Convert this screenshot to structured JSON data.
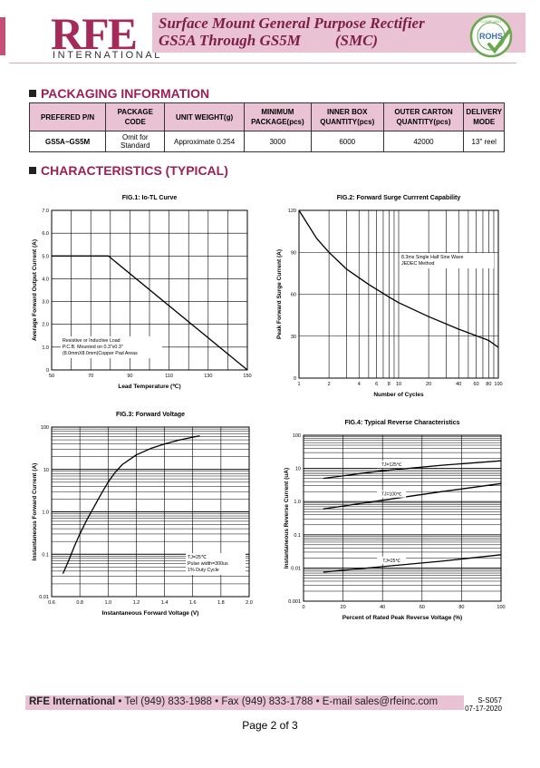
{
  "header": {
    "logo_main": "RFE",
    "logo_sub": "INTERNATIONAL",
    "title_line1": "Surface Mount General Purpose Rectifier",
    "title_line2": "GS5A Through GS5M",
    "title_line2_suffix": "(SMC)",
    "badge_text": "ROHS",
    "badge_ring_text": "COMPLIANT",
    "colors": {
      "brand": "#a52a5a",
      "band": "#e9c3d3",
      "title": "#7d1e46",
      "section": "#9c2054"
    }
  },
  "packaging": {
    "section_title": "PACKAGING INFORMATION",
    "headers": [
      "PREFERED P/N",
      "PACKAGE CODE",
      "UNIT WEIGHT(g)",
      "MINIMUM PACKAGE(pcs)",
      "INNER BOX QUANTITY(pcs)",
      "OUTER CARTON QUANTITY(pcs)",
      "DELIVERY MODE"
    ],
    "row": [
      "GS5A~GS5M",
      "Omit for Standard",
      "Approximate 0.254",
      "3000",
      "6000",
      "42000",
      "13\" reel"
    ]
  },
  "characteristics": {
    "section_title": "CHARACTERISTICS (TYPICAL)"
  },
  "chart_data": [
    {
      "type": "line",
      "title": "FIG.1: Io-TL Curve",
      "xlabel": "Lead Temperature (℃)",
      "ylabel": "Average Forward Output Current (A)",
      "xlim": [
        50,
        150
      ],
      "ylim": [
        0,
        7
      ],
      "xticks": [
        "50",
        "70",
        "90",
        "110",
        "130",
        "150"
      ],
      "yticks": [
        "0",
        "1.0",
        "2.0",
        "3.0",
        "4.0",
        "5.0",
        "6.0",
        "7.0"
      ],
      "series": [
        {
          "x": [
            50,
            79,
            150
          ],
          "y": [
            5.0,
            5.0,
            0
          ]
        }
      ],
      "annotation": [
        "Resistive or Inductive Load",
        "P.C.B. Mounted on 0.3\"x0.3\"",
        "(8.0mmX8.0mm)Copper Pad Areas"
      ],
      "grid": true
    },
    {
      "type": "line",
      "title": "FIG.2: Forward Surge Currrent Capability",
      "xlabel": "Number of Cycles",
      "ylabel": "Peak Forward Surge Current (A)",
      "xscale": "log",
      "xlim": [
        1,
        100
      ],
      "ylim": [
        0,
        120
      ],
      "xticks": [
        "1",
        "2",
        "4",
        "6",
        "8",
        "10",
        "20",
        "40",
        "60",
        "80",
        "100"
      ],
      "yticks": [
        "0",
        "30",
        "60",
        "90",
        "120"
      ],
      "series": [
        {
          "x": [
            1,
            1.5,
            2,
            3,
            5,
            8,
            10,
            20,
            40,
            80,
            100
          ],
          "y": [
            120,
            100,
            90,
            78,
            67,
            58,
            54,
            44,
            35,
            27,
            22
          ]
        }
      ],
      "annotation": [
        "8.3ms Single Half Sine Wave",
        "JEDEC Method"
      ],
      "grid": true
    },
    {
      "type": "line",
      "title": "FIG.3: Forward  Voltage",
      "xlabel": "Instantaneous Forward Voltage (V)",
      "ylabel": "Instantaneous Forward Current (A)",
      "yscale": "log",
      "xlim": [
        0.6,
        2.0
      ],
      "ylim": [
        0.01,
        100
      ],
      "xticks": [
        "0.6",
        "0.8",
        "1.0",
        "1.2",
        "1.4",
        "1.6",
        "1.8",
        "2.0"
      ],
      "yticks": [
        "0.01",
        "0.1",
        "1.0",
        "10",
        "100"
      ],
      "series": [
        {
          "x": [
            0.68,
            0.72,
            0.76,
            0.8,
            0.85,
            0.9,
            0.95,
            1.0,
            1.05,
            1.1,
            1.2,
            1.3,
            1.4,
            1.5,
            1.6,
            1.65
          ],
          "y": [
            0.035,
            0.07,
            0.15,
            0.3,
            0.65,
            1.3,
            2.6,
            5.0,
            8.5,
            13,
            22,
            31,
            40,
            49,
            58,
            62
          ]
        }
      ],
      "annotation": [
        "TJ=25℃",
        "Pulse width=300us",
        "1% Duty Cycle"
      ],
      "grid": true
    },
    {
      "type": "line",
      "title": "FIG.4: Typical Reverse Characteristics",
      "xlabel": "Percent of Rated Peak Reverse Voltage (%)",
      "ylabel": "Instantaneous Reverse Current (uA)",
      "yscale": "log",
      "xlim": [
        0,
        100
      ],
      "ylim": [
        0.001,
        100
      ],
      "xticks": [
        "0",
        "20",
        "40",
        "60",
        "80",
        "100"
      ],
      "yticks": [
        "0.001",
        "0.01",
        "0.1",
        "1.0",
        "10",
        "100"
      ],
      "series": [
        {
          "name": "TJ=125℃",
          "x": [
            10,
            40,
            70,
            100
          ],
          "y": [
            5.0,
            8.5,
            12.5,
            17
          ]
        },
        {
          "name": "TJ=100℃",
          "x": [
            10,
            40,
            70,
            100
          ],
          "y": [
            0.6,
            1.1,
            2.0,
            3.5
          ]
        },
        {
          "name": "TJ=25℃",
          "x": [
            10,
            40,
            70,
            100
          ],
          "y": [
            0.0075,
            0.011,
            0.016,
            0.025
          ]
        }
      ],
      "grid": true
    }
  ],
  "footer": {
    "company": "RFE International",
    "contact": " • Tel (949) 833-1988 • Fax (949) 833-1788 • E-mail sales@rfeinc.com",
    "doc_code": "S-S057",
    "doc_date": "07-17-2020",
    "page": "Page 2 of 3"
  }
}
